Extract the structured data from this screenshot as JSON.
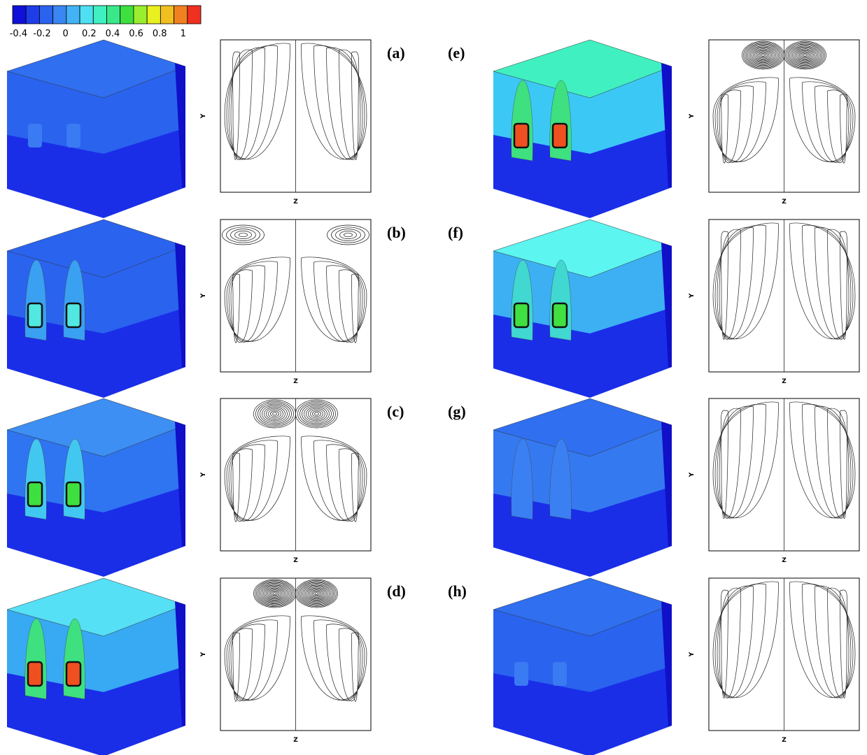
{
  "colorbar": {
    "range": [
      -0.45,
      1.15
    ],
    "ticks": [
      -0.4,
      -0.2,
      0,
      0.2,
      0.4,
      0.6,
      0.8,
      1
    ],
    "colors": [
      "#1010d8",
      "#1e3ce8",
      "#2a63ee",
      "#3a86f2",
      "#42b4f5",
      "#4ee0f2",
      "#40f0c0",
      "#3ae88a",
      "#3ee040",
      "#9aee30",
      "#e8f020",
      "#f0c020",
      "#f08020",
      "#f03020"
    ]
  },
  "panels": [
    {
      "label": "(a)",
      "y_label": "Y",
      "z_label": "Z"
    },
    {
      "label": "(b)",
      "y_label": "Y",
      "z_label": "Z"
    },
    {
      "label": "(c)",
      "y_label": "Y",
      "z_label": "Z"
    },
    {
      "label": "(d)",
      "y_label": "Y",
      "z_label": "Z"
    },
    {
      "label": "(e)",
      "y_label": "Y",
      "z_label": "Z"
    },
    {
      "label": "(f)",
      "y_label": "Y",
      "z_label": "Z"
    },
    {
      "label": "(g)",
      "y_label": "Y",
      "z_label": "Z"
    },
    {
      "label": "(h)",
      "y_label": "Y",
      "z_label": "Z"
    }
  ]
}
